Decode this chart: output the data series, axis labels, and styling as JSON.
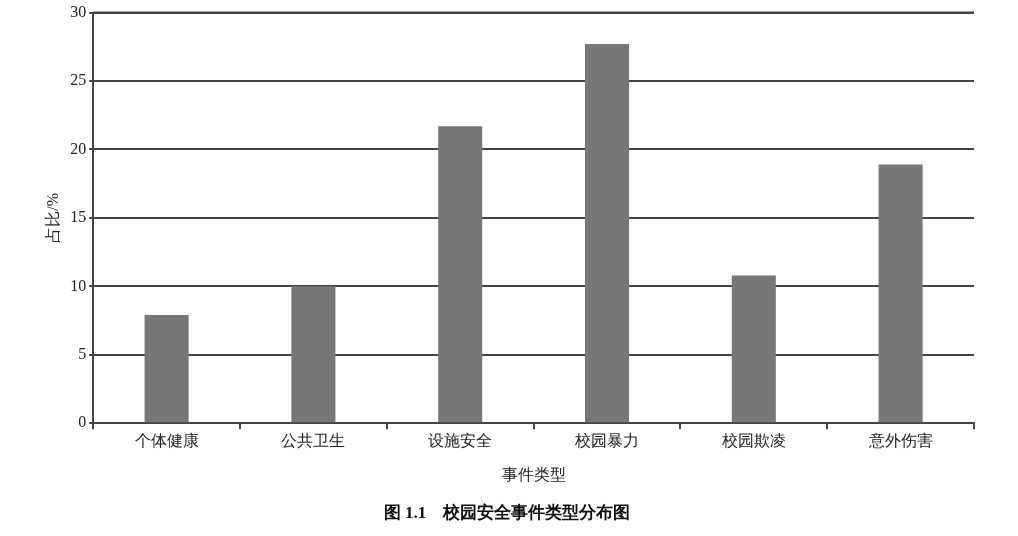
{
  "chart_data": {
    "type": "bar",
    "title": "图 1.1　校园安全事件类型分布图",
    "xlabel": "事件类型",
    "ylabel": "占比/%",
    "categories": [
      "个体健康",
      "公共卫生",
      "设施安全",
      "校园暴力",
      "校园欺凌",
      "意外伤害"
    ],
    "values": [
      7.9,
      10,
      21.7,
      27.7,
      10.8,
      18.9
    ],
    "color": "#777777",
    "ylim": [
      0,
      30
    ],
    "yticks": [
      0,
      5,
      10,
      15,
      20,
      25,
      30
    ],
    "grid": "y"
  }
}
